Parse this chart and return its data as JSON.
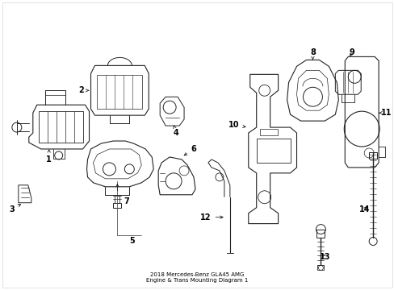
{
  "title": "2018 Mercedes-Benz GLA45 AMG\nEngine & Trans Mounting Diagram 1",
  "bg_color": "#ffffff",
  "line_color": "#222222",
  "label_color": "#000000",
  "figsize": [
    4.89,
    3.6
  ],
  "dpi": 100
}
